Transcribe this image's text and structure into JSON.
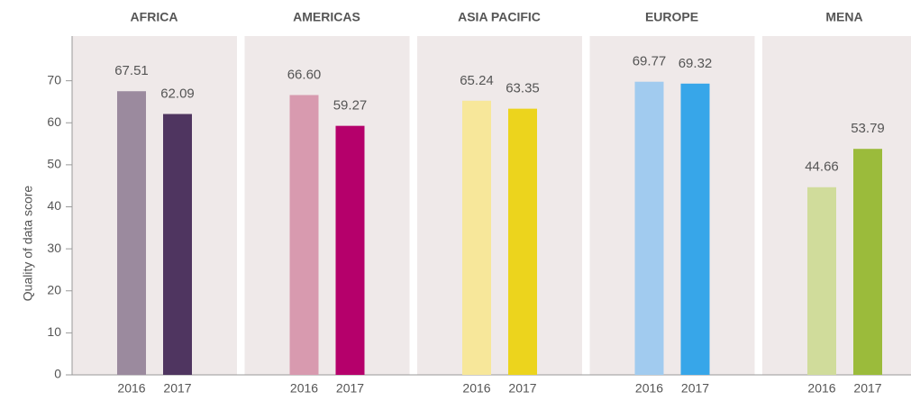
{
  "chart_data": {
    "type": "bar",
    "ylabel": "Quality of data score",
    "ylim": [
      0,
      80
    ],
    "yticks": [
      0,
      10,
      20,
      30,
      40,
      50,
      60,
      70
    ],
    "panels": [
      {
        "title": "AFRICA",
        "categories": [
          "2016",
          "2017"
        ],
        "values": [
          67.51,
          62.09
        ],
        "value_labels": [
          "67.51",
          "62.09"
        ],
        "colors": [
          "#9b8a9e",
          "#4f3560"
        ]
      },
      {
        "title": "AMERICAS",
        "categories": [
          "2016",
          "2017"
        ],
        "values": [
          66.6,
          59.27
        ],
        "value_labels": [
          "66.60",
          "59.27"
        ],
        "colors": [
          "#d89aaf",
          "#b5006b"
        ]
      },
      {
        "title": "ASIA PACIFIC",
        "categories": [
          "2016",
          "2017"
        ],
        "values": [
          65.24,
          63.35
        ],
        "value_labels": [
          "65.24",
          "63.35"
        ],
        "colors": [
          "#f7e79a",
          "#ecd41d"
        ]
      },
      {
        "title": "EUROPE",
        "categories": [
          "2016",
          "2017"
        ],
        "values": [
          69.77,
          69.32
        ],
        "value_labels": [
          "69.77",
          "69.32"
        ],
        "colors": [
          "#a1cbef",
          "#37a6e9"
        ]
      },
      {
        "title": "MENA",
        "categories": [
          "2016",
          "2017"
        ],
        "values": [
          44.66,
          53.79
        ],
        "value_labels": [
          "44.66",
          "53.79"
        ],
        "colors": [
          "#d0dc9b",
          "#9bbb3b"
        ]
      }
    ]
  }
}
